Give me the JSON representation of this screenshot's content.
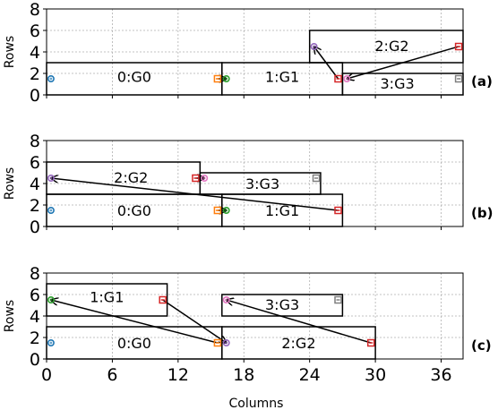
{
  "chart_data": {
    "type": "scatter",
    "xlabel": "Columns",
    "ylabel": "Rows",
    "xlim": [
      0,
      38
    ],
    "ylim": [
      0,
      8
    ],
    "xticks": [
      0,
      6,
      12,
      18,
      24,
      30,
      36
    ],
    "yticks": [
      0,
      2,
      4,
      6,
      8
    ],
    "grid": true,
    "colors": {
      "blue": "#1f77b4",
      "orange": "#ff7f0e",
      "green": "#2ca02c",
      "red": "#d62728",
      "purple": "#9467bd",
      "pink": "#e377c2",
      "gray": "#7f7f7f"
    },
    "panels": [
      {
        "label": "(a)",
        "blocks": [
          {
            "name": "0:G0",
            "x0": 0,
            "x1": 16,
            "y0": 0,
            "y1": 3,
            "label_x": 8,
            "label_y": 1.7
          },
          {
            "name": "1:G1",
            "x0": 16,
            "x1": 27,
            "y0": 0,
            "y1": 3,
            "label_x": 21.5,
            "label_y": 1.7
          },
          {
            "name": "2:G2",
            "x0": 24,
            "x1": 38,
            "y0": 3,
            "y1": 6,
            "label_x": 31.5,
            "label_y": 4.6
          },
          {
            "name": "3:G3",
            "x0": 27,
            "x1": 38,
            "y0": 0,
            "y1": 2,
            "label_x": 32,
            "label_y": 1.1
          }
        ],
        "points": [
          {
            "x": 0.4,
            "y": 1.5,
            "marker": "circle",
            "color": "blue"
          },
          {
            "x": 15.6,
            "y": 1.5,
            "marker": "square",
            "color": "orange"
          },
          {
            "x": 16.4,
            "y": 1.5,
            "marker": "circle",
            "color": "green"
          },
          {
            "x": 26.6,
            "y": 1.5,
            "marker": "square",
            "color": "red"
          },
          {
            "x": 24.4,
            "y": 4.5,
            "marker": "circle",
            "color": "purple"
          },
          {
            "x": 37.6,
            "y": 4.5,
            "marker": "square",
            "color": "red"
          },
          {
            "x": 27.4,
            "y": 1.5,
            "marker": "circle",
            "color": "pink"
          },
          {
            "x": 37.6,
            "y": 1.5,
            "marker": "square",
            "color": "gray"
          }
        ],
        "arrows": [
          {
            "x0": 15.6,
            "y0": 1.5,
            "x1": 16.4,
            "y1": 1.5
          },
          {
            "x0": 26.6,
            "y0": 1.5,
            "x1": 24.4,
            "y1": 4.5
          },
          {
            "x0": 37.6,
            "y0": 4.5,
            "x1": 27.4,
            "y1": 1.5
          }
        ]
      },
      {
        "label": "(b)",
        "blocks": [
          {
            "name": "0:G0",
            "x0": 0,
            "x1": 16,
            "y0": 0,
            "y1": 3,
            "label_x": 8,
            "label_y": 1.5
          },
          {
            "name": "1:G1",
            "x0": 16,
            "x1": 27,
            "y0": 0,
            "y1": 3,
            "label_x": 21.5,
            "label_y": 1.5
          },
          {
            "name": "2:G2",
            "x0": 0,
            "x1": 14,
            "y0": 3,
            "y1": 6,
            "label_x": 7.7,
            "label_y": 4.6
          },
          {
            "name": "3:G3",
            "x0": 14,
            "x1": 25,
            "y0": 3,
            "y1": 5,
            "label_x": 19.7,
            "label_y": 4.0
          }
        ],
        "points": [
          {
            "x": 0.4,
            "y": 1.5,
            "marker": "circle",
            "color": "blue"
          },
          {
            "x": 15.6,
            "y": 1.5,
            "marker": "square",
            "color": "orange"
          },
          {
            "x": 16.4,
            "y": 1.5,
            "marker": "circle",
            "color": "green"
          },
          {
            "x": 26.6,
            "y": 1.5,
            "marker": "square",
            "color": "red"
          },
          {
            "x": 0.4,
            "y": 4.5,
            "marker": "circle",
            "color": "purple"
          },
          {
            "x": 13.6,
            "y": 4.5,
            "marker": "square",
            "color": "red"
          },
          {
            "x": 14.4,
            "y": 4.5,
            "marker": "circle",
            "color": "pink"
          },
          {
            "x": 24.6,
            "y": 4.5,
            "marker": "square",
            "color": "gray"
          }
        ],
        "arrows": [
          {
            "x0": 15.6,
            "y0": 1.5,
            "x1": 16.4,
            "y1": 1.5
          },
          {
            "x0": 26.6,
            "y0": 1.5,
            "x1": 0.4,
            "y1": 4.5
          },
          {
            "x0": 13.6,
            "y0": 4.5,
            "x1": 14.4,
            "y1": 4.5
          }
        ]
      },
      {
        "label": "(c)",
        "blocks": [
          {
            "name": "0:G0",
            "x0": 0,
            "x1": 16,
            "y0": 0,
            "y1": 3,
            "label_x": 8,
            "label_y": 1.5
          },
          {
            "name": "1:G1",
            "x0": 0,
            "x1": 11,
            "y0": 4,
            "y1": 7,
            "label_x": 5.5,
            "label_y": 5.8
          },
          {
            "name": "2:G2",
            "x0": 16,
            "x1": 30,
            "y0": 0,
            "y1": 3,
            "label_x": 23,
            "label_y": 1.5
          },
          {
            "name": "3:G3",
            "x0": 16,
            "x1": 27,
            "y0": 4,
            "y1": 6,
            "label_x": 21.5,
            "label_y": 5.1
          }
        ],
        "points": [
          {
            "x": 0.4,
            "y": 1.5,
            "marker": "circle",
            "color": "blue"
          },
          {
            "x": 15.6,
            "y": 1.5,
            "marker": "square",
            "color": "orange"
          },
          {
            "x": 0.4,
            "y": 5.5,
            "marker": "circle",
            "color": "green"
          },
          {
            "x": 10.6,
            "y": 5.5,
            "marker": "square",
            "color": "red"
          },
          {
            "x": 16.4,
            "y": 1.5,
            "marker": "circle",
            "color": "purple"
          },
          {
            "x": 29.6,
            "y": 1.5,
            "marker": "square",
            "color": "red"
          },
          {
            "x": 16.4,
            "y": 5.5,
            "marker": "circle",
            "color": "pink"
          },
          {
            "x": 26.6,
            "y": 5.5,
            "marker": "square",
            "color": "gray"
          }
        ],
        "arrows": [
          {
            "x0": 15.6,
            "y0": 1.5,
            "x1": 0.4,
            "y1": 5.5
          },
          {
            "x0": 10.6,
            "y0": 5.5,
            "x1": 16.4,
            "y1": 1.5
          },
          {
            "x0": 29.6,
            "y0": 1.5,
            "x1": 16.4,
            "y1": 5.5
          }
        ]
      }
    ]
  }
}
